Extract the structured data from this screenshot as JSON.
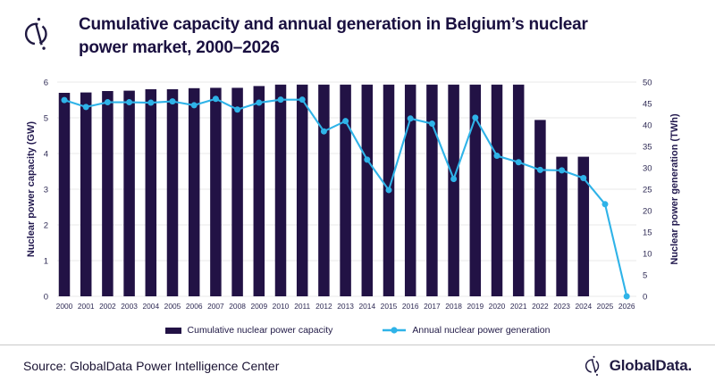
{
  "header": {
    "title_line1": "Cumulative capacity and annual generation in Belgium’s nuclear",
    "title_line2": "power market, 2000–2026"
  },
  "chart_data": {
    "type": "bar",
    "subtype": "combo-bar-line-dual-axis",
    "categories": [
      "2000",
      "2001",
      "2002",
      "2003",
      "2004",
      "2005",
      "2006",
      "2007",
      "2008",
      "2009",
      "2010",
      "2011",
      "2012",
      "2013",
      "2014",
      "2015",
      "2016",
      "2017",
      "2018",
      "2019",
      "2020",
      "2021",
      "2022",
      "2023",
      "2024",
      "2025",
      "2026"
    ],
    "series": [
      {
        "name": "Cumulative nuclear power capacity",
        "type": "bar",
        "axis": "left",
        "unit": "GW",
        "color": "#221245",
        "values": [
          5.7,
          5.71,
          5.75,
          5.76,
          5.8,
          5.8,
          5.83,
          5.84,
          5.84,
          5.89,
          5.93,
          5.93,
          5.93,
          5.93,
          5.93,
          5.93,
          5.93,
          5.93,
          5.93,
          5.93,
          5.93,
          5.93,
          4.94,
          3.91,
          3.91,
          0,
          0
        ]
      },
      {
        "name": "Annual nuclear power generation",
        "type": "line",
        "axis": "right",
        "unit": "TWh",
        "color": "#2FB3E8",
        "values": [
          45.8,
          44.2,
          45.3,
          45.3,
          45.2,
          45.5,
          44.6,
          46.1,
          43.6,
          45.2,
          45.9,
          45.9,
          38.5,
          40.9,
          31.9,
          24.8,
          41.5,
          40.3,
          27.4,
          41.7,
          32.8,
          31.3,
          29.5,
          29.4,
          27.6,
          21.5,
          0
        ]
      }
    ],
    "ylabel_left": "Nuclear power capacity (GW)",
    "ylabel_right": "Nuclear power generation (TWh)",
    "ylim_left": [
      0,
      6
    ],
    "ylim_right": [
      0,
      50
    ],
    "yticks_left": [
      0,
      1,
      2,
      3,
      4,
      5,
      6
    ],
    "yticks_right": [
      0,
      5,
      10,
      15,
      20,
      25,
      30,
      35,
      40,
      45,
      50
    ],
    "grid": "horizontal",
    "legend_position": "bottom"
  },
  "footer": {
    "source": "Source: GlobalData Power Intelligence Center",
    "brand": "GlobalData."
  },
  "colors": {
    "bar": "#221245",
    "line": "#2FB3E8",
    "title_text": "#1A1040",
    "grid": "#E8E8E8",
    "divider": "#C9C9C9"
  }
}
